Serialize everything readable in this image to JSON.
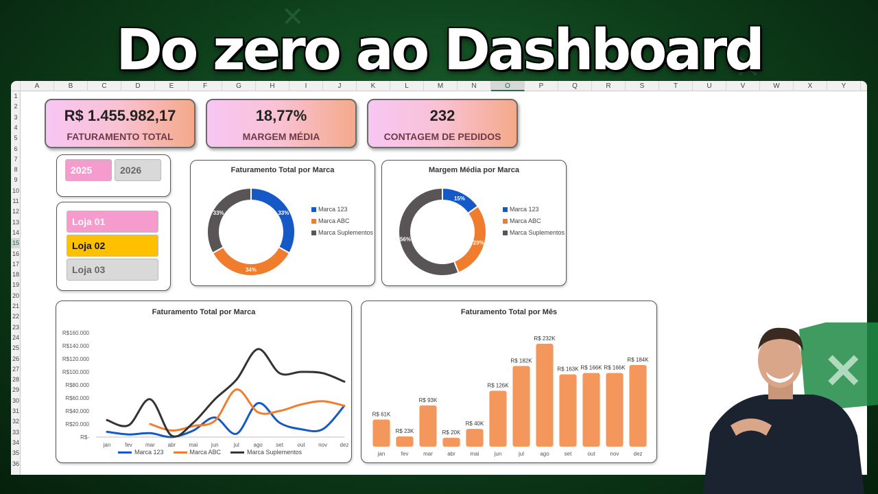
{
  "headline": "Do zero ao Dashboard",
  "spreadsheet": {
    "columns": [
      "A",
      "B",
      "C",
      "D",
      "E",
      "F",
      "G",
      "H",
      "I",
      "J",
      "K",
      "L",
      "M",
      "N",
      "O",
      "P",
      "Q",
      "R",
      "S",
      "T",
      "U",
      "V",
      "W",
      "X",
      "Y"
    ],
    "selected_column": "O",
    "rows": [
      "1",
      "2",
      "3",
      "4",
      "5",
      "6",
      "7",
      "8",
      "9",
      "10",
      "11",
      "12",
      "13",
      "14",
      "15",
      "16",
      "17",
      "18",
      "19",
      "20",
      "21",
      "22",
      "23",
      "24",
      "25",
      "26",
      "27",
      "28",
      "29",
      "30",
      "31",
      "32",
      "33",
      "34",
      "35",
      "36"
    ],
    "selected_row": "15"
  },
  "kpis": [
    {
      "value": "R$ 1.455.982,17",
      "label": "FATURAMENTO TOTAL"
    },
    {
      "value": "18,77%",
      "label": "MARGEM MÉDIA"
    },
    {
      "value": "232",
      "label": "CONTAGEM DE PEDIDOS"
    }
  ],
  "year_filter": {
    "items": [
      "2025",
      "2026"
    ],
    "selected": "2025"
  },
  "store_filter": {
    "items": [
      "Loja 01",
      "Loja 02",
      "Loja 03"
    ]
  },
  "colors": {
    "marca_123": "#1559c6",
    "marca_abc": "#f07c2e",
    "marca_suplementos": "#595556",
    "bar": "#f4975d",
    "kpi_label": "#6e3a48",
    "excel_green": "#217346"
  },
  "chart_data": [
    {
      "type": "pie",
      "title": "Faturamento Total por Marca",
      "labels": [
        "Marca 123",
        "Marca ABC",
        "Marca Suplementos"
      ],
      "values": [
        33,
        34,
        33
      ],
      "data_labels": [
        "33%",
        "34%",
        "33%"
      ],
      "legend": "right"
    },
    {
      "type": "pie",
      "title": "Margem Média por Marca",
      "labels": [
        "Marca 123",
        "Marca ABC",
        "Marca Suplementos"
      ],
      "values": [
        15,
        29,
        56
      ],
      "data_labels": [
        "15%",
        "29%",
        "56%"
      ],
      "legend": "right"
    },
    {
      "type": "line",
      "title": "Faturamento Total por Marca",
      "categories": [
        "jan",
        "fev",
        "mar",
        "abr",
        "mai",
        "jun",
        "jul",
        "ago",
        "set",
        "out",
        "nov",
        "dez"
      ],
      "yticks": [
        "R$-",
        "R$20.000",
        "R$40.000",
        "R$60.000",
        "R$80.000",
        "R$100.000",
        "R$120.000",
        "R$140.000",
        "R$160.000"
      ],
      "ylim": [
        0,
        160000
      ],
      "series": [
        {
          "name": "Marca 123",
          "values": [
            8000,
            4000,
            6000,
            0,
            10000,
            30000,
            5000,
            52000,
            22000,
            12000,
            12000,
            48000
          ]
        },
        {
          "name": "Marca ABC",
          "values": [
            null,
            null,
            20000,
            10000,
            17000,
            25000,
            73000,
            38000,
            40000,
            50000,
            55000,
            48000
          ]
        },
        {
          "name": "Marca Suplementos",
          "values": [
            26000,
            18000,
            58000,
            2000,
            22000,
            58000,
            88000,
            135000,
            98000,
            100000,
            98000,
            85000
          ]
        }
      ],
      "legend": "bottom"
    },
    {
      "type": "bar",
      "title": "Faturamento Total por Mês",
      "categories": [
        "jan",
        "fev",
        "mar",
        "abr",
        "mai",
        "jun",
        "jul",
        "ago",
        "set",
        "out",
        "nov",
        "dez"
      ],
      "values": [
        61,
        23,
        93,
        20,
        40,
        126,
        182,
        232,
        163,
        166,
        166,
        184
      ],
      "data_labels": [
        "R$ 61K",
        "R$ 23K",
        "R$ 93K",
        "R$ 20K",
        "R$ 40K",
        "R$ 126K",
        "R$ 182K",
        "R$ 232K",
        "R$ 163K",
        "R$ 166K",
        "R$ 166K",
        "R$ 184K"
      ]
    }
  ]
}
